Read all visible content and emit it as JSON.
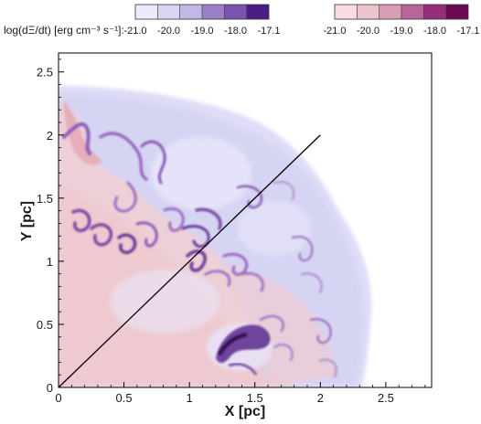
{
  "chart_data": {
    "type": "heatmap",
    "title": "",
    "xlabel": "X [pc]",
    "ylabel": "Y [pc]",
    "xlim": [
      0,
      2.85
    ],
    "ylim": [
      0,
      2.65
    ],
    "x_ticks": [
      "0",
      "0.5",
      "1",
      "1.5",
      "2",
      "2.5"
    ],
    "y_ticks": [
      "0",
      "0.5",
      "1",
      "1.5",
      "2",
      "2.5"
    ],
    "x_tick_values": [
      0,
      0.5,
      1,
      1.5,
      2,
      2.5
    ],
    "y_tick_values": [
      0,
      0.5,
      1,
      1.5,
      2,
      2.5
    ],
    "diagonal_line": {
      "from": [
        0,
        0
      ],
      "to": [
        2.0,
        2.0
      ]
    },
    "colorbar_label": "log(dΞ/dt) [erg cm⁻³ s⁻¹]:",
    "colorbars": [
      {
        "name": "blue-purple",
        "ticks": [
          "-21.0",
          "-20.0",
          "-19.0",
          "-18.0",
          "-17.1"
        ],
        "stops": [
          "#eaeafb",
          "#d8d5f2",
          "#c2b8e6",
          "#9b80c8",
          "#7a52b0",
          "#4a1c86"
        ]
      },
      {
        "name": "pink-magenta",
        "ticks": [
          "-21.0",
          "-20.0",
          "-19.0",
          "-18.0",
          "-17.1"
        ],
        "stops": [
          "#f7dde0",
          "#eec4cc",
          "#d89db4",
          "#b8659a",
          "#962f7a",
          "#6a0a52"
        ]
      }
    ],
    "field_colors": {
      "background": "#dcdcf5",
      "halo": "#e7e7fa",
      "pink_region": "#f2cfd2",
      "pink_dark": "#e6adb4",
      "purple_filament": "#7a4aa6",
      "dark_knot": "#3a145f"
    }
  }
}
